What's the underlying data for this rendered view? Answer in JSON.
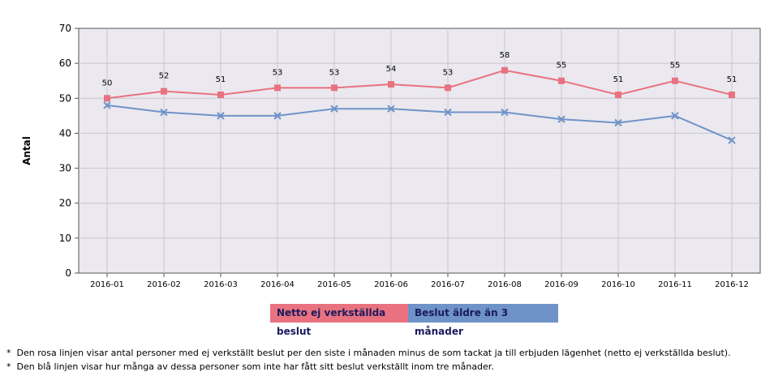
{
  "chart_data": {
    "type": "line",
    "ylabel": "Antal",
    "ylim": [
      0,
      70
    ],
    "yticks": [
      0,
      10,
      20,
      30,
      40,
      50,
      60,
      70
    ],
    "categories": [
      "2016-01",
      "2016-02",
      "2016-03",
      "2016-04",
      "2016-05",
      "2016-06",
      "2016-07",
      "2016-08",
      "2016-09",
      "2016-10",
      "2016-11",
      "2016-12"
    ],
    "grid": true,
    "legend_position": "bottom",
    "series": [
      {
        "name": "Netto ej verkställda beslut",
        "color": "#e8727f",
        "marker": "square",
        "data_labels": true,
        "values": [
          50,
          52,
          51,
          53,
          53,
          54,
          53,
          58,
          55,
          51,
          55,
          51
        ]
      },
      {
        "name": "Beslut äldre än 3 månader",
        "color": "#6f93c8",
        "marker": "x",
        "data_labels": false,
        "values": [
          48,
          46,
          45,
          45,
          47,
          47,
          46,
          46,
          44,
          43,
          45,
          38
        ]
      }
    ]
  },
  "notes": [
    "Den rosa linjen visar antal personer med ej verkställt beslut per den siste i månaden minus de som tackat ja till erbjuden lägenhet (netto ej verkställda beslut).",
    "Den blå linjen visar hur många av dessa personer som inte har fått sitt beslut verkställt inom tre månader."
  ]
}
